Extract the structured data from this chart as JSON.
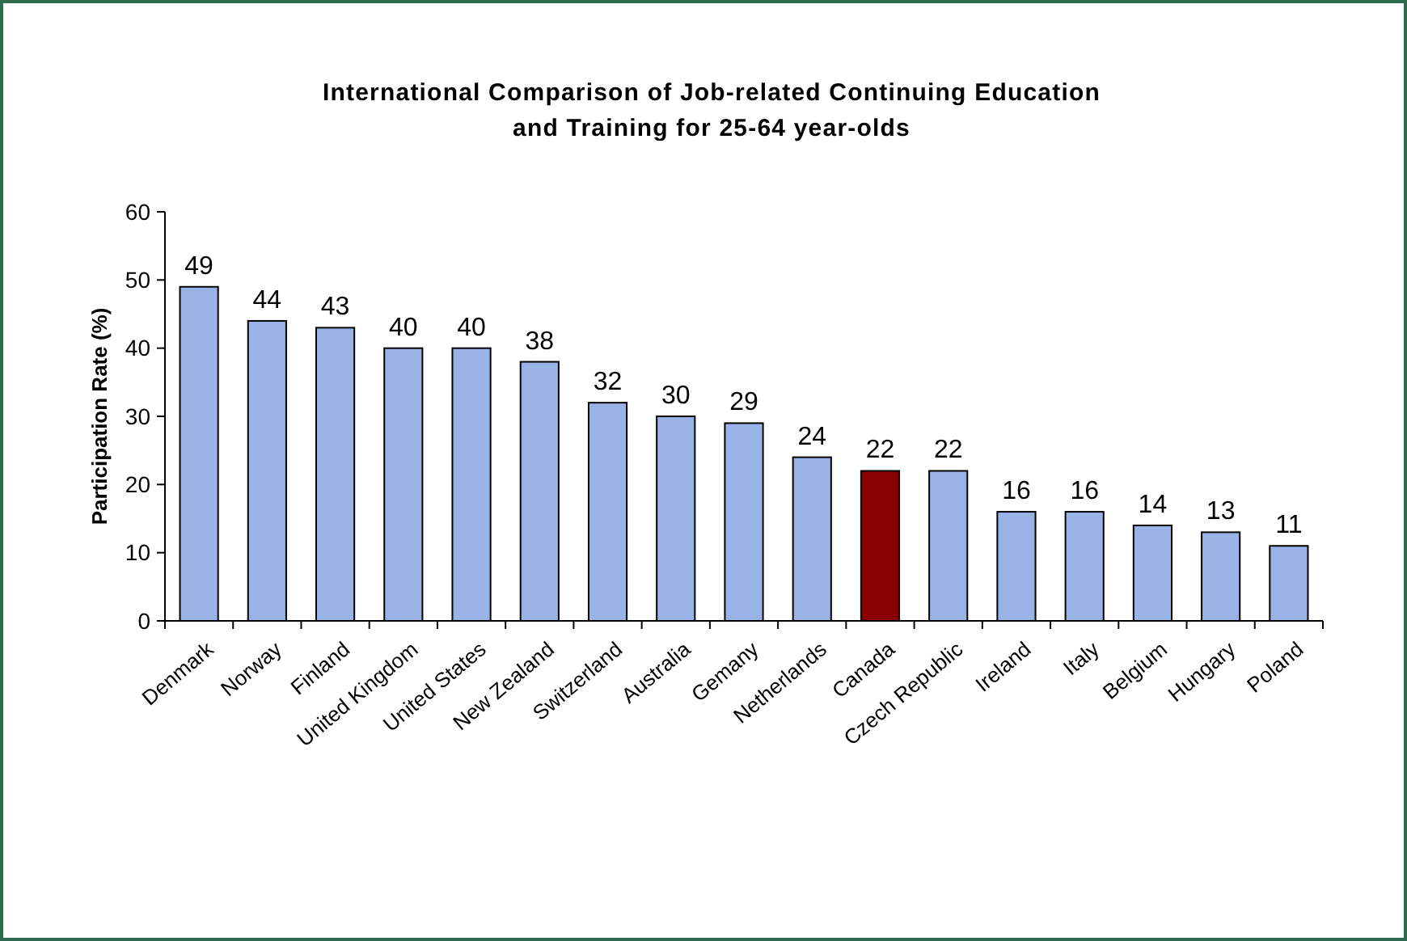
{
  "chart_data": {
    "type": "bar",
    "title": "International Comparison of Job-related Continuing Education and Training for 25-64 year-olds",
    "ylabel": "Participation Rate (%)",
    "categories": [
      "Denmark",
      "Norway",
      "Finland",
      "United Kingdom",
      "United States",
      "New Zealand",
      "Switzerland",
      "Australia",
      "Gemany",
      "Netherlands",
      "Canada",
      "Czech Republic",
      "Ireland",
      "Italy",
      "Belgium",
      "Hungary",
      "Poland"
    ],
    "values": [
      49,
      44,
      43,
      40,
      40,
      38,
      32,
      30,
      29,
      24,
      22,
      22,
      16,
      16,
      14,
      13,
      11
    ],
    "colors": [
      "#99b3e6",
      "#99b3e6",
      "#99b3e6",
      "#99b3e6",
      "#99b3e6",
      "#99b3e6",
      "#99b3e6",
      "#99b3e6",
      "#99b3e6",
      "#99b3e6",
      "#8b0000",
      "#99b3e6",
      "#99b3e6",
      "#99b3e6",
      "#99b3e6",
      "#99b3e6",
      "#99b3e6"
    ],
    "ylim": [
      0,
      60
    ],
    "yticks": [
      0,
      10,
      20,
      30,
      40,
      50,
      60
    ],
    "grid": false,
    "data_labels": true
  }
}
